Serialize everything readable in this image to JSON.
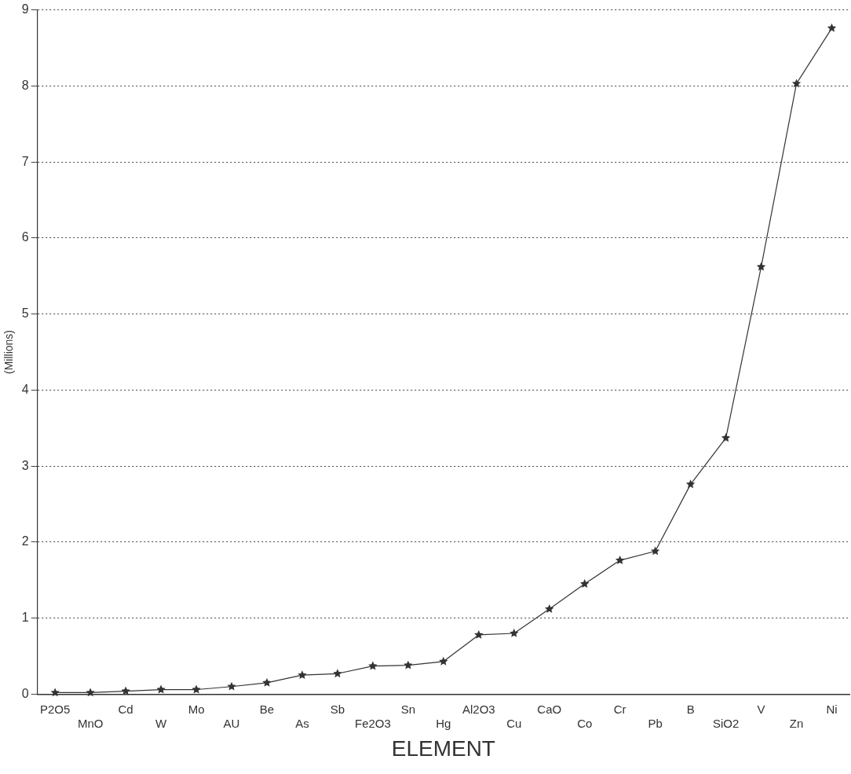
{
  "chart_data": {
    "type": "line",
    "xlabel": "ELEMENT",
    "ylabel": "(Millions)",
    "categories": [
      "P2O5",
      "MnO",
      "Cd",
      "W",
      "Mo",
      "AU",
      "Be",
      "As",
      "Sb",
      "Fe2O3",
      "Sn",
      "Hg",
      "Al2O3",
      "Cu",
      "CaO",
      "Co",
      "Cr",
      "Pb",
      "B",
      "SiO2",
      "V",
      "Zn",
      "Ni"
    ],
    "values": [
      0.02,
      0.02,
      0.04,
      0.06,
      0.06,
      0.1,
      0.15,
      0.25,
      0.27,
      0.37,
      0.38,
      0.43,
      0.78,
      0.8,
      1.12,
      1.45,
      1.76,
      1.88,
      2.76,
      3.37,
      5.62,
      8.03,
      8.76
    ],
    "color": "#333333",
    "ylim": [
      0,
      9
    ],
    "yticks": [
      0,
      1,
      2,
      3,
      4,
      5,
      6,
      7,
      8,
      9
    ],
    "grid": "y",
    "marker": "star",
    "line_style": "solid",
    "legend": false
  }
}
